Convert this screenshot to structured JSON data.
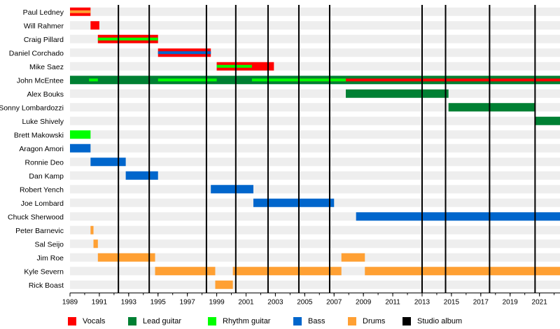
{
  "chart_data": {
    "type": "timeline",
    "title": "",
    "xlabel": "",
    "ylabel": "",
    "xlim": [
      1989,
      2022.4
    ],
    "x_ticks": [
      1989,
      1991,
      1993,
      1995,
      1997,
      1999,
      2001,
      2003,
      2005,
      2007,
      2009,
      2011,
      2013,
      2015,
      2017,
      2019,
      2021
    ],
    "members": [
      "Paul Ledney",
      "Will Rahmer",
      "Craig Pillard",
      "Daniel Corchado",
      "Mike Saez",
      "John McEntee",
      "Alex Bouks",
      "Sonny Lombardozzi",
      "Luke Shively",
      "Brett Makowski",
      "Aragon Amori",
      "Ronnie Deo",
      "Dan Kamp",
      "Robert Yench",
      "Joe Lombard",
      "Chuck Sherwood",
      "Peter Barnevic",
      "Sal Seijo",
      "Jim Roe",
      "Kyle Severn",
      "Rick Boast"
    ],
    "roles": [
      {
        "key": "vocals",
        "name": "Vocals",
        "color": "#ff0000"
      },
      {
        "key": "lead",
        "name": "Lead guitar",
        "color": "#008033"
      },
      {
        "key": "rhythm",
        "name": "Rhythm guitar",
        "color": "#00ff00"
      },
      {
        "key": "bass",
        "name": "Bass",
        "color": "#0066cc"
      },
      {
        "key": "drums",
        "name": "Drums",
        "color": "#ffa033"
      },
      {
        "key": "album",
        "name": "Studio album",
        "color": "#000000"
      }
    ],
    "albums": [
      1992.3,
      1994.4,
      1998.3,
      2000.3,
      2002.5,
      2004.6,
      2006.7,
      2013.0,
      2014.6,
      2017.6,
      2020.7
    ],
    "bars": [
      {
        "member": "Paul Ledney",
        "role": "vocals",
        "start": 1989.0,
        "end": 1990.4
      },
      {
        "member": "Paul Ledney",
        "role": "drums",
        "start": 1989.0,
        "end": 1990.4,
        "stripe": true
      },
      {
        "member": "Will Rahmer",
        "role": "vocals",
        "start": 1990.4,
        "end": 1991.0
      },
      {
        "member": "Craig Pillard",
        "role": "vocals",
        "start": 1990.9,
        "end": 1995.0
      },
      {
        "member": "Craig Pillard",
        "role": "rhythm",
        "start": 1990.9,
        "end": 1995.0,
        "stripe": true
      },
      {
        "member": "Daniel Corchado",
        "role": "vocals",
        "start": 1995.0,
        "end": 1998.6
      },
      {
        "member": "Daniel Corchado",
        "role": "bass",
        "start": 1995.0,
        "end": 1998.6,
        "stripe": true
      },
      {
        "member": "Mike Saez",
        "role": "vocals",
        "start": 1999.0,
        "end": 2002.9
      },
      {
        "member": "Mike Saez",
        "role": "rhythm",
        "start": 1999.0,
        "end": 2001.4,
        "stripe": true
      },
      {
        "member": "John McEntee",
        "role": "lead",
        "start": 1989.0,
        "end": 2022.4
      },
      {
        "member": "John McEntee",
        "role": "vocals",
        "start": 2004.0,
        "end": 2022.4,
        "stripe": true
      },
      {
        "member": "John McEntee",
        "role": "rhythm",
        "start": 1990.3,
        "end": 1990.9,
        "stripe": true
      },
      {
        "member": "John McEntee",
        "role": "rhythm",
        "start": 1995.0,
        "end": 1999.0,
        "stripe": true
      },
      {
        "member": "John McEntee",
        "role": "rhythm",
        "start": 2001.4,
        "end": 2007.8,
        "stripe": true
      },
      {
        "member": "Alex Bouks",
        "role": "lead",
        "start": 2007.8,
        "end": 2014.8
      },
      {
        "member": "Sonny Lombardozzi",
        "role": "lead",
        "start": 2014.8,
        "end": 2020.7
      },
      {
        "member": "Luke Shively",
        "role": "lead",
        "start": 2020.7,
        "end": 2022.4
      },
      {
        "member": "Brett Makowski",
        "role": "rhythm",
        "start": 1989.0,
        "end": 1990.4
      },
      {
        "member": "Aragon Amori",
        "role": "bass",
        "start": 1989.0,
        "end": 1990.4
      },
      {
        "member": "Ronnie Deo",
        "role": "bass",
        "start": 1990.4,
        "end": 1992.8
      },
      {
        "member": "Dan Kamp",
        "role": "bass",
        "start": 1992.8,
        "end": 1995.0
      },
      {
        "member": "Robert Yench",
        "role": "bass",
        "start": 1998.6,
        "end": 2001.5
      },
      {
        "member": "Joe Lombard",
        "role": "bass",
        "start": 2001.5,
        "end": 2007.0
      },
      {
        "member": "Chuck Sherwood",
        "role": "bass",
        "start": 2008.5,
        "end": 2022.4
      },
      {
        "member": "Peter Barnevic",
        "role": "drums",
        "start": 1990.4,
        "end": 1990.6
      },
      {
        "member": "Sal Seijo",
        "role": "drums",
        "start": 1990.6,
        "end": 1990.9
      },
      {
        "member": "Jim Roe",
        "role": "drums",
        "start": 1990.9,
        "end": 1994.8
      },
      {
        "member": "Jim Roe",
        "role": "drums",
        "start": 2007.5,
        "end": 2009.1
      },
      {
        "member": "Kyle Severn",
        "role": "drums",
        "start": 1994.8,
        "end": 1998.9
      },
      {
        "member": "Kyle Severn",
        "role": "drums",
        "start": 2000.1,
        "end": 2007.5
      },
      {
        "member": "Kyle Severn",
        "role": "drums",
        "start": 2009.1,
        "end": 2022.4
      },
      {
        "member": "Rick Boast",
        "role": "drums",
        "start": 1998.9,
        "end": 2000.1
      }
    ]
  }
}
